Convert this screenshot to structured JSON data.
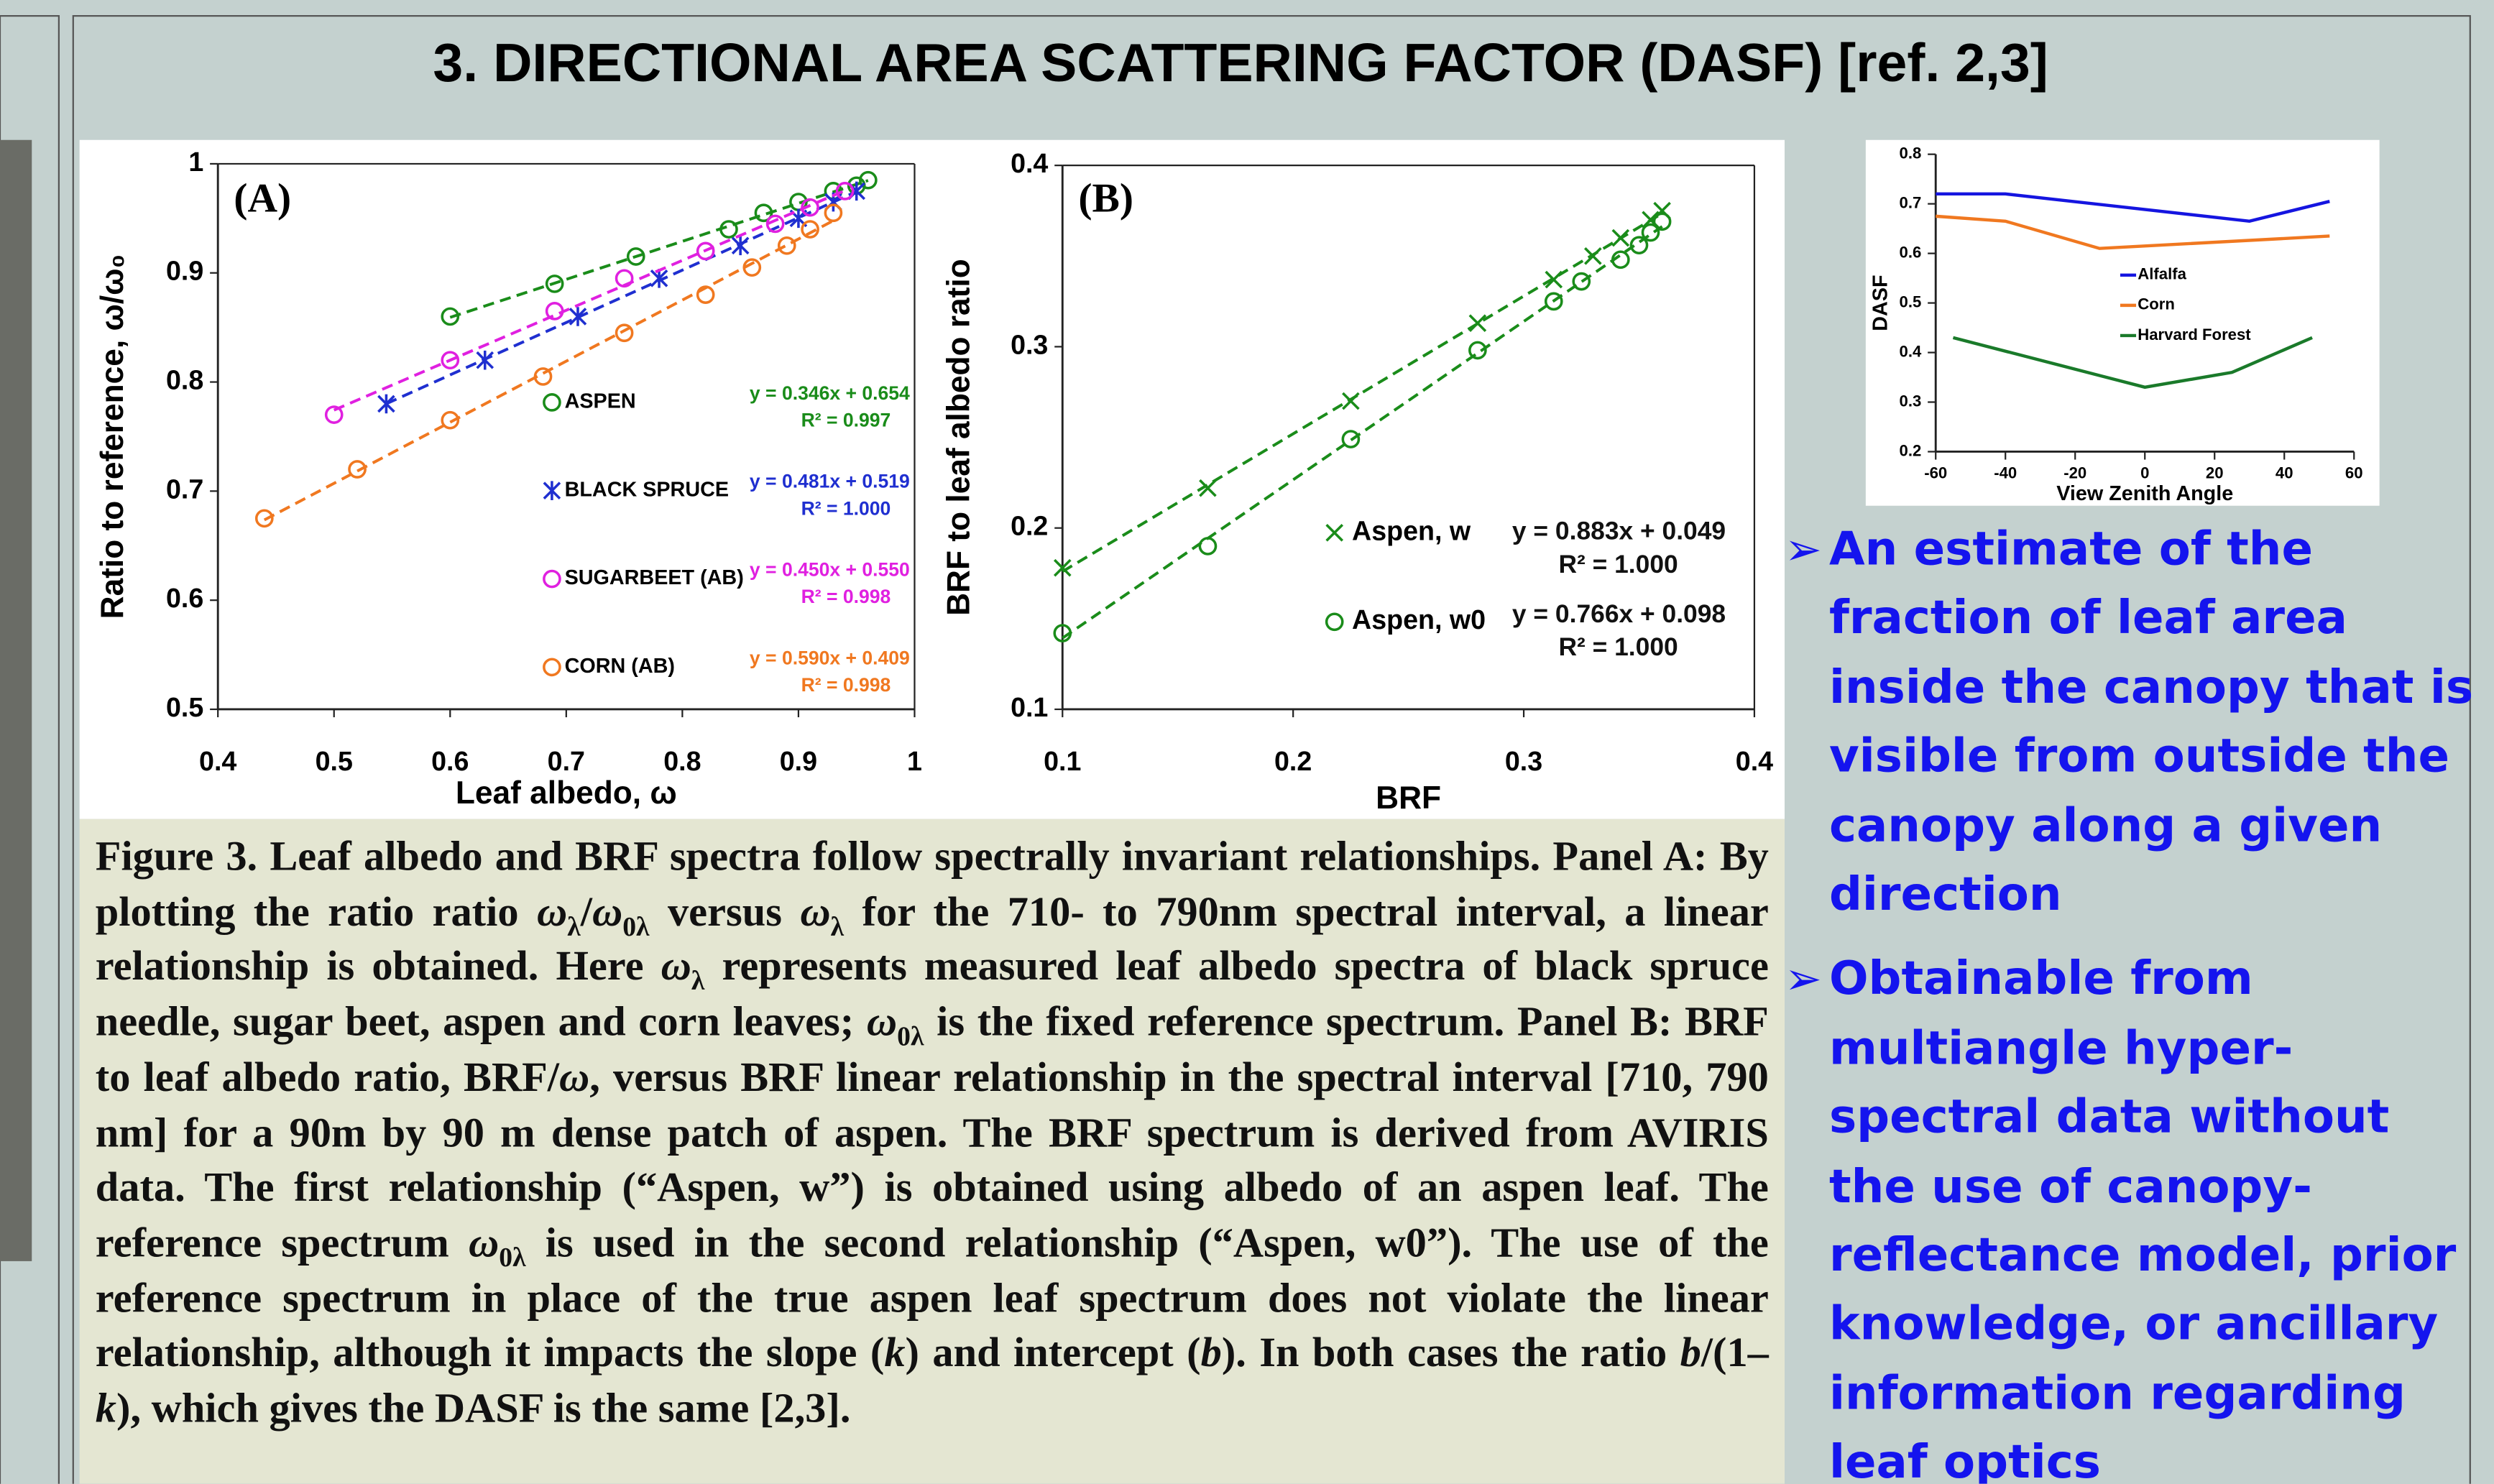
{
  "title": "3. DIRECTIONAL AREA SCATTERING FACTOR (DASF) [ref. 2,3]",
  "chart_data": [
    {
      "type": "scatter",
      "panel_label": "(A)",
      "xlabel": "Leaf albedo, ω",
      "ylabel": "Ratio to reference, ω/ω₀",
      "xlim": [
        0.4,
        1
      ],
      "xticks": [
        0.4,
        0.5,
        0.6,
        0.7,
        0.8,
        0.9,
        1
      ],
      "ylim": [
        0.5,
        1
      ],
      "yticks": [
        0.5,
        0.6,
        0.7,
        0.8,
        0.9,
        1
      ],
      "trendline": true,
      "series": [
        {
          "name": "ASPEN",
          "color": "#1a8c1a",
          "marker": "circle",
          "equation": "y = 0.346x + 0.654",
          "r2": "R² = 0.997",
          "x": [
            0.6,
            0.69,
            0.76,
            0.84,
            0.87,
            0.9,
            0.93,
            0.95,
            0.96
          ],
          "values": [
            0.86,
            0.89,
            0.915,
            0.94,
            0.955,
            0.965,
            0.975,
            0.98,
            0.985
          ]
        },
        {
          "name": "BLACK SPRUCE",
          "color": "#1f2fd0",
          "marker": "asterisk",
          "equation": "y = 0.481x + 0.519",
          "r2": "R² = 1.000",
          "x": [
            0.545,
            0.63,
            0.71,
            0.78,
            0.85,
            0.9,
            0.93,
            0.95
          ],
          "values": [
            0.78,
            0.82,
            0.86,
            0.895,
            0.925,
            0.95,
            0.965,
            0.975
          ]
        },
        {
          "name": "SUGARBEET (AB)",
          "color": "#e020e0",
          "marker": "circle",
          "equation": "y = 0.450x + 0.550",
          "r2": "R² = 0.998",
          "x": [
            0.5,
            0.6,
            0.69,
            0.75,
            0.82,
            0.88,
            0.91,
            0.94
          ],
          "values": [
            0.77,
            0.82,
            0.865,
            0.895,
            0.92,
            0.945,
            0.96,
            0.975
          ]
        },
        {
          "name": "CORN (AB)",
          "color": "#f07820",
          "marker": "circle",
          "equation": "y = 0.590x + 0.409",
          "r2": "R² = 0.998",
          "x": [
            0.44,
            0.52,
            0.6,
            0.68,
            0.75,
            0.82,
            0.86,
            0.89,
            0.91,
            0.93
          ],
          "values": [
            0.675,
            0.72,
            0.765,
            0.805,
            0.845,
            0.88,
            0.905,
            0.925,
            0.94,
            0.955
          ]
        }
      ]
    },
    {
      "type": "scatter",
      "panel_label": "(B)",
      "xlabel": "BRF",
      "ylabel": "BRF to leaf albedo ratio",
      "xlim": [
        0.1,
        0.4
      ],
      "xticks": [
        0.1,
        0.2,
        0.3,
        0.4
      ],
      "ylim": [
        0.1,
        0.4
      ],
      "yticks": [
        0.1,
        0.2,
        0.3,
        0.4
      ],
      "trendline": true,
      "series": [
        {
          "name": "Aspen, w",
          "color": "#1a8c1a",
          "marker": "x",
          "equation": "y = 0.883x + 0.049",
          "r2": "R² = 1.000",
          "x": [
            0.1,
            0.163,
            0.225,
            0.28,
            0.313,
            0.33,
            0.342,
            0.355,
            0.36
          ],
          "values": [
            0.178,
            0.222,
            0.27,
            0.313,
            0.337,
            0.35,
            0.36,
            0.37,
            0.375
          ]
        },
        {
          "name": "Aspen, w0",
          "color": "#1a8c1a",
          "marker": "circle",
          "equation": "y = 0.766x + 0.098",
          "r2": "R² = 1.000",
          "x": [
            0.1,
            0.163,
            0.225,
            0.28,
            0.313,
            0.325,
            0.342,
            0.35,
            0.355,
            0.36
          ],
          "values": [
            0.142,
            0.19,
            0.249,
            0.298,
            0.325,
            0.336,
            0.348,
            0.356,
            0.363,
            0.369
          ]
        }
      ]
    },
    {
      "type": "line",
      "xlabel": "View Zenith Angle",
      "ylabel": "DASF",
      "xlim": [
        -60,
        60
      ],
      "xticks": [
        -60,
        -40,
        -20,
        0,
        20,
        40,
        60
      ],
      "ylim": [
        0.2,
        0.8
      ],
      "yticks": [
        0.2,
        0.3,
        0.4,
        0.5,
        0.6,
        0.7,
        0.8
      ],
      "series": [
        {
          "name": "Alfalfa",
          "color": "#1515e0",
          "x": [
            -60,
            -40,
            30,
            53
          ],
          "values": [
            0.72,
            0.72,
            0.665,
            0.705
          ]
        },
        {
          "name": "Corn",
          "color": "#f07820",
          "x": [
            -60,
            -40,
            -13,
            53
          ],
          "values": [
            0.675,
            0.665,
            0.61,
            0.635
          ]
        },
        {
          "name": "Harvard Forest",
          "color": "#1a7a2a",
          "x": [
            -55,
            0,
            25,
            48
          ],
          "values": [
            0.43,
            0.33,
            0.36,
            0.43
          ]
        }
      ]
    }
  ],
  "caption": [
    {
      "text": "Figure 3. Leaf albedo and BRF spectra follow spectrally invariant relationships. Panel A: By plotting the ratio ratio "
    },
    {
      "text": "ω",
      "style": "i"
    },
    {
      "text": "λ",
      "style": "sub"
    },
    {
      "text": "/"
    },
    {
      "text": "ω",
      "style": "i"
    },
    {
      "text": "0λ",
      "style": "sub"
    },
    {
      "text": " versus "
    },
    {
      "text": "ω",
      "style": "i"
    },
    {
      "text": "λ",
      "style": "sub"
    },
    {
      "text": " for the 710- to 790nm spectral interval, a linear relationship is obtained. Here "
    },
    {
      "text": "ω",
      "style": "i"
    },
    {
      "text": "λ",
      "style": "sub"
    },
    {
      "text": " represents measured leaf albedo spectra of black spruce needle, sugar beet, aspen and corn leaves; "
    },
    {
      "text": "ω",
      "style": "i"
    },
    {
      "text": "0λ",
      "style": "sub"
    },
    {
      "text": " is the fixed reference spectrum. Panel B: BRF to leaf albedo ratio, BRF/"
    },
    {
      "text": "ω",
      "style": "i"
    },
    {
      "text": ", versus BRF linear relationship in the spectral interval [710, 790 nm] for a 90m by 90 m dense patch of aspen. The BRF spectrum is derived from AVIRIS data. The first relationship (“Aspen, w”) is obtained using albedo of an aspen leaf. The reference spectrum "
    },
    {
      "text": "ω",
      "style": "i"
    },
    {
      "text": "0λ",
      "style": "sub"
    },
    {
      "text": " is used in the second relationship (“Aspen, w0”). The use of the reference spectrum in place of the true aspen leaf spectrum does not violate the linear relationship, although it impacts the slope ("
    },
    {
      "text": "k",
      "style": "i"
    },
    {
      "text": ") and intercept ("
    },
    {
      "text": "b",
      "style": "i"
    },
    {
      "text": "). In both cases the ratio "
    },
    {
      "text": "b",
      "style": "i"
    },
    {
      "text": "/(1–"
    },
    {
      "text": "k",
      "style": "i"
    },
    {
      "text": "), which gives the DASF is the same [2,3]."
    }
  ],
  "bullets": [
    "An estimate of the fraction of leaf area inside the canopy that is visible from outside the canopy along a given direction",
    "Obtainable from multiangle hyper-spectral data without the use of canopy-reflectance model, prior knowledge, or ancillary information regarding leaf optics"
  ]
}
